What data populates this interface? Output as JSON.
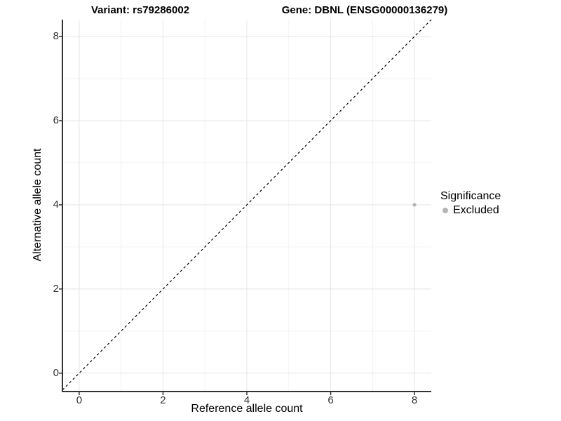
{
  "titles": {
    "variant": "Variant: rs79286002",
    "gene": "Gene: DBNL (ENSG00000136279)"
  },
  "chart_data": {
    "type": "scatter",
    "title_left": "Variant: rs79286002",
    "title_right": "Gene: DBNL (ENSG00000136279)",
    "xlabel": "Reference allele count",
    "ylabel": "Alternative allele count",
    "xlim": [
      -0.4,
      8.4
    ],
    "ylim": [
      -0.42,
      8.4
    ],
    "xticks": [
      "0",
      "2",
      "4",
      "6",
      "8"
    ],
    "yticks": [
      "0",
      "2",
      "4",
      "6",
      "8"
    ],
    "xtick_values": [
      0,
      2,
      4,
      6,
      8
    ],
    "ytick_values": [
      0,
      2,
      4,
      6,
      8
    ],
    "minor_xtick_values": [
      1,
      3,
      5,
      7
    ],
    "minor_ytick_values": [
      1,
      3,
      5,
      7
    ],
    "grid": true,
    "legend_position": "right",
    "reference_line": {
      "kind": "identity",
      "style": "dashed",
      "color": "#000000"
    },
    "series": [
      {
        "name": "Excluded",
        "color": "#b5b5b5",
        "points": [
          {
            "x": 8,
            "y": 4
          }
        ]
      }
    ],
    "legend": {
      "title": "Significance",
      "items": [
        {
          "label": "Excluded",
          "color": "#b5b5b5"
        }
      ]
    }
  },
  "colors": {
    "background": "#ffffff",
    "grid_major": "#e5e5e5",
    "grid_minor": "#f2f2f2",
    "axis_line": "#333333",
    "tick_text": "#333333",
    "title_text": "#000000",
    "point": "#b5b5b5",
    "reference_line": "#000000"
  }
}
